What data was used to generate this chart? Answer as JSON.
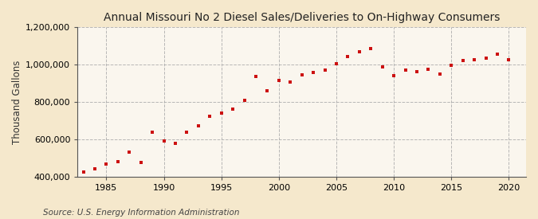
{
  "title": "Annual Missouri No 2 Diesel Sales/Deliveries to On-Highway Consumers",
  "ylabel": "Thousand Gallons",
  "source": "Source: U.S. Energy Information Administration",
  "fig_background_color": "#f5e8cc",
  "plot_background_color": "#faf6ee",
  "marker_color": "#cc1111",
  "grid_color": "#b0b0b0",
  "years": [
    1983,
    1984,
    1985,
    1986,
    1987,
    1988,
    1989,
    1990,
    1991,
    1992,
    1993,
    1994,
    1995,
    1996,
    1997,
    1998,
    1999,
    2000,
    2001,
    2002,
    2003,
    2004,
    2005,
    2006,
    2007,
    2008,
    2009,
    2010,
    2011,
    2012,
    2013,
    2014,
    2015,
    2016,
    2017,
    2018,
    2019,
    2020
  ],
  "values": [
    425000,
    440000,
    465000,
    480000,
    530000,
    475000,
    638000,
    590000,
    578000,
    640000,
    672000,
    725000,
    742000,
    760000,
    808000,
    937000,
    858000,
    914000,
    907000,
    945000,
    957000,
    972000,
    1005000,
    1042000,
    1068000,
    1085000,
    987000,
    942000,
    972000,
    963000,
    975000,
    948000,
    997000,
    1020000,
    1025000,
    1035000,
    1058000,
    1025000
  ],
  "xlim": [
    1982.5,
    2021.5
  ],
  "ylim": [
    400000,
    1200000
  ],
  "yticks": [
    400000,
    600000,
    800000,
    1000000,
    1200000
  ],
  "xticks": [
    1985,
    1990,
    1995,
    2000,
    2005,
    2010,
    2015,
    2020
  ],
  "title_fontsize": 10,
  "label_fontsize": 8.5,
  "tick_fontsize": 8,
  "source_fontsize": 7.5
}
